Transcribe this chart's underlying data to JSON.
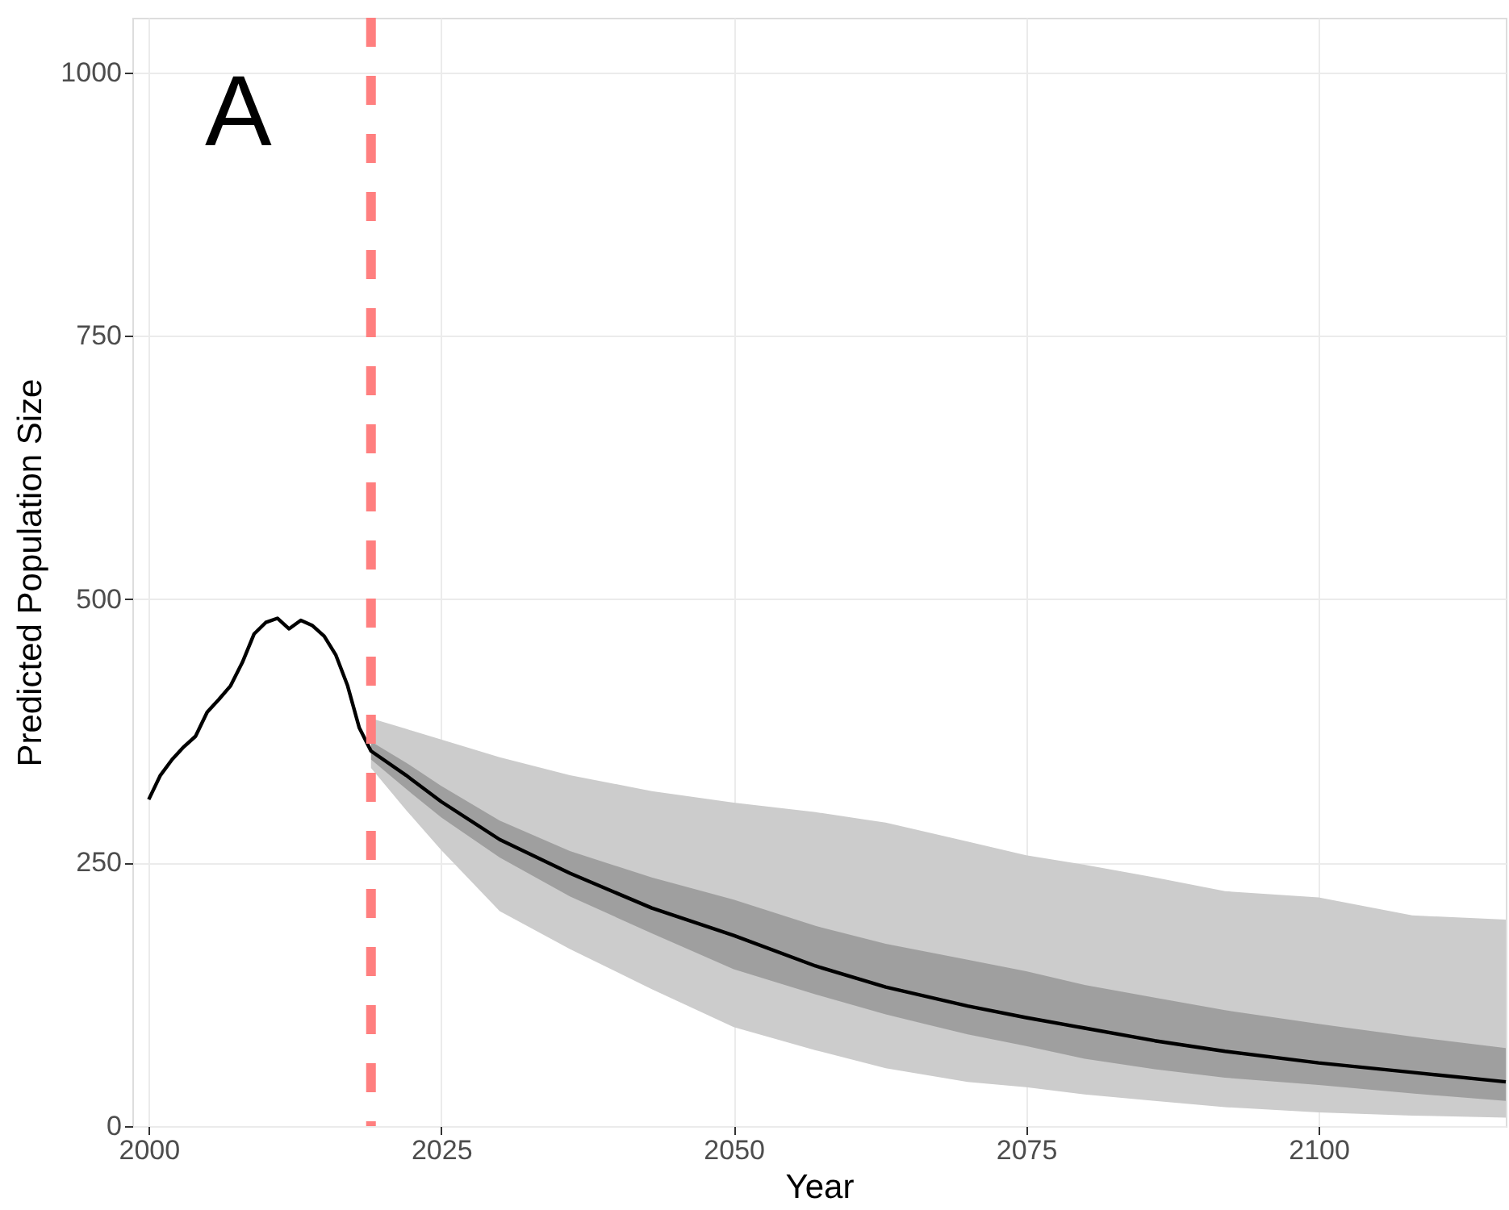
{
  "chart_data": {
    "type": "line",
    "xlabel": "Year",
    "ylabel": "Predicted Population Size",
    "annotations": [
      "A"
    ],
    "xlim": [
      1998.6,
      2116
    ],
    "ylim": [
      0,
      1052
    ],
    "xticks": [
      2000,
      2025,
      2050,
      2075,
      2100
    ],
    "yticks": [
      0,
      250,
      500,
      750,
      1000
    ],
    "grid": true,
    "line_style": "solid",
    "marker": "none",
    "ref_lines": [
      {
        "axis": "x",
        "value": 2019,
        "color": "#ff7f7f",
        "line_style": "dashed"
      }
    ],
    "series": [
      {
        "type": "area",
        "color": "#cccccc",
        "x": [
          2019,
          2022,
          2025,
          2030,
          2036,
          2043,
          2050,
          2057,
          2063,
          2070,
          2075,
          2080,
          2086,
          2092,
          2100,
          2108,
          2116
        ],
        "values": [
          null,
          null,
          null,
          null,
          null,
          null,
          null,
          null,
          null,
          null,
          null,
          null,
          null,
          null,
          null,
          null,
          null
        ],
        "lower": [
          340,
          300,
          262,
          204,
          168,
          130,
          94,
          72,
          55,
          42,
          37,
          30,
          24,
          18,
          13,
          10,
          8
        ],
        "upper": [
          387,
          377,
          367,
          350,
          333,
          318,
          307,
          298,
          288,
          270,
          257,
          248,
          236,
          223,
          217,
          200,
          196
        ]
      },
      {
        "type": "line",
        "color": "#000000",
        "x": [
          2000,
          2001,
          2002,
          2003,
          2004,
          2005,
          2006,
          2007,
          2008,
          2009,
          2010,
          2011,
          2012,
          2013,
          2014,
          2015,
          2016,
          2017,
          2018,
          2019,
          2022,
          2025,
          2030,
          2036,
          2043,
          2050,
          2057,
          2063,
          2070,
          2075,
          2080,
          2086,
          2092,
          2100,
          2108,
          2116
        ],
        "values": [
          310,
          333,
          348,
          360,
          370,
          393,
          405,
          418,
          440,
          467,
          478,
          482,
          472,
          480,
          475,
          465,
          447,
          418,
          378,
          356,
          333,
          308,
          272,
          240,
          207,
          181,
          152,
          132,
          114,
          103,
          93,
          81,
          71,
          60,
          51,
          42
        ],
        "lower": [
          null,
          null,
          null,
          null,
          null,
          null,
          null,
          null,
          null,
          null,
          null,
          null,
          null,
          null,
          null,
          null,
          null,
          null,
          null,
          348,
          320,
          293,
          255,
          218,
          183,
          149,
          125,
          106,
          87,
          76,
          64,
          54,
          46,
          39,
          31,
          24
        ],
        "upper": [
          null,
          null,
          null,
          null,
          null,
          null,
          null,
          null,
          null,
          null,
          null,
          null,
          null,
          null,
          null,
          null,
          null,
          null,
          null,
          365,
          345,
          323,
          290,
          261,
          236,
          215,
          190,
          173,
          158,
          147,
          134,
          122,
          110,
          97,
          85,
          74
        ]
      }
    ]
  }
}
